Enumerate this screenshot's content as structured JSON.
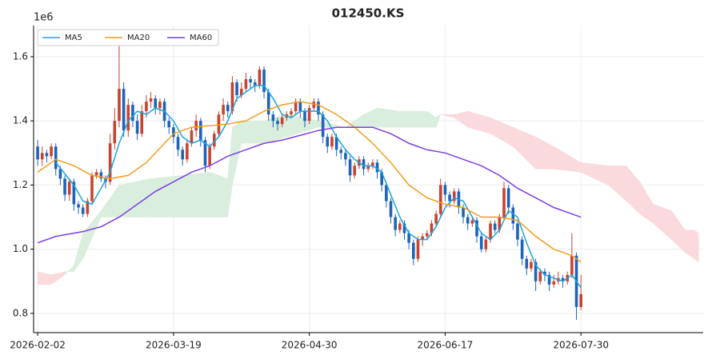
{
  "chart_data": {
    "type": "candlestick",
    "title": "012450.KS",
    "offset_label": "1e6",
    "up_color": "#c8432f",
    "down_color": "#1f63b8",
    "open": [
      1.32,
      1.28,
      1.3,
      1.29,
      1.32,
      1.25,
      1.22,
      1.17,
      1.21,
      1.14,
      1.13,
      1.11,
      1.15,
      1.23,
      1.24,
      1.22,
      1.21,
      1.33,
      1.4,
      1.5,
      1.37,
      1.45,
      1.4,
      1.36,
      1.43,
      1.46,
      1.47,
      1.44,
      1.46,
      1.4,
      1.38,
      1.35,
      1.31,
      1.28,
      1.33,
      1.37,
      1.4,
      1.34,
      1.26,
      1.32,
      1.36,
      1.42,
      1.45,
      1.43,
      1.52,
      1.48,
      1.5,
      1.53,
      1.52,
      1.51,
      1.56,
      1.49,
      1.42,
      1.4,
      1.39,
      1.41,
      1.42,
      1.43,
      1.46,
      1.43,
      1.4,
      1.44,
      1.46,
      1.42,
      1.35,
      1.32,
      1.35,
      1.31,
      1.3,
      1.28,
      1.23,
      1.26,
      1.28,
      1.25,
      1.26,
      1.27,
      1.24,
      1.2,
      1.15,
      1.1,
      1.06,
      1.08,
      1.05,
      1.02,
      0.97,
      1.03,
      1.04,
      1.05,
      1.08,
      1.11,
      1.2,
      1.17,
      1.15,
      1.18,
      1.13,
      1.1,
      1.08,
      1.09,
      1.04,
      1.0,
      1.03,
      1.08,
      1.06,
      1.1,
      1.19,
      1.13,
      1.08,
      1.03,
      0.97,
      0.94,
      0.96,
      0.9,
      0.93,
      0.92,
      0.89,
      0.9,
      0.91,
      0.9,
      0.92,
      0.98,
      0.82
    ],
    "high": [
      1.34,
      1.32,
      1.31,
      1.33,
      1.33,
      1.26,
      1.23,
      1.22,
      1.22,
      1.15,
      1.14,
      1.16,
      1.24,
      1.25,
      1.25,
      1.23,
      1.36,
      1.44,
      1.66,
      1.52,
      1.47,
      1.46,
      1.42,
      1.45,
      1.48,
      1.49,
      1.48,
      1.47,
      1.47,
      1.41,
      1.39,
      1.36,
      1.32,
      1.34,
      1.38,
      1.42,
      1.41,
      1.35,
      1.33,
      1.37,
      1.43,
      1.47,
      1.46,
      1.54,
      1.53,
      1.52,
      1.55,
      1.54,
      1.53,
      1.57,
      1.57,
      1.5,
      1.43,
      1.41,
      1.42,
      1.43,
      1.44,
      1.47,
      1.47,
      1.44,
      1.45,
      1.47,
      1.47,
      1.43,
      1.36,
      1.36,
      1.36,
      1.32,
      1.31,
      1.29,
      1.27,
      1.29,
      1.29,
      1.27,
      1.28,
      1.28,
      1.25,
      1.21,
      1.16,
      1.11,
      1.09,
      1.09,
      1.06,
      1.03,
      1.04,
      1.05,
      1.06,
      1.09,
      1.12,
      1.22,
      1.21,
      1.18,
      1.19,
      1.19,
      1.14,
      1.11,
      1.1,
      1.1,
      1.05,
      1.04,
      1.09,
      1.09,
      1.11,
      1.21,
      1.2,
      1.14,
      1.09,
      1.04,
      0.98,
      0.97,
      0.97,
      0.94,
      0.94,
      0.93,
      0.92,
      0.93,
      0.92,
      0.93,
      1.05,
      0.99,
      0.92
    ],
    "low": [
      1.26,
      1.26,
      1.27,
      1.28,
      1.23,
      1.2,
      1.15,
      1.15,
      1.12,
      1.11,
      1.1,
      1.1,
      1.14,
      1.22,
      1.21,
      1.19,
      1.2,
      1.31,
      1.38,
      1.35,
      1.35,
      1.38,
      1.34,
      1.35,
      1.41,
      1.44,
      1.42,
      1.42,
      1.38,
      1.36,
      1.33,
      1.29,
      1.26,
      1.27,
      1.32,
      1.35,
      1.32,
      1.24,
      1.25,
      1.31,
      1.35,
      1.4,
      1.41,
      1.42,
      1.46,
      1.47,
      1.49,
      1.5,
      1.49,
      1.5,
      1.47,
      1.4,
      1.38,
      1.37,
      1.38,
      1.4,
      1.41,
      1.42,
      1.41,
      1.38,
      1.39,
      1.43,
      1.4,
      1.33,
      1.3,
      1.31,
      1.29,
      1.28,
      1.26,
      1.21,
      1.22,
      1.25,
      1.23,
      1.24,
      1.25,
      1.22,
      1.18,
      1.13,
      1.08,
      1.04,
      1.05,
      1.03,
      1.0,
      0.95,
      0.96,
      1.01,
      1.03,
      1.04,
      1.07,
      1.1,
      1.15,
      1.13,
      1.14,
      1.11,
      1.08,
      1.06,
      1.07,
      1.02,
      0.99,
      0.99,
      1.02,
      1.05,
      1.05,
      1.09,
      1.11,
      1.06,
      1.01,
      0.95,
      0.92,
      0.93,
      0.87,
      0.89,
      0.9,
      0.87,
      0.88,
      0.89,
      0.88,
      0.89,
      0.91,
      0.78,
      0.81
    ],
    "close": [
      1.28,
      1.3,
      1.29,
      1.32,
      1.25,
      1.22,
      1.17,
      1.21,
      1.14,
      1.13,
      1.11,
      1.15,
      1.23,
      1.24,
      1.22,
      1.21,
      1.33,
      1.4,
      1.5,
      1.37,
      1.45,
      1.4,
      1.36,
      1.43,
      1.46,
      1.47,
      1.44,
      1.46,
      1.4,
      1.38,
      1.35,
      1.31,
      1.28,
      1.33,
      1.37,
      1.4,
      1.34,
      1.26,
      1.32,
      1.36,
      1.42,
      1.45,
      1.43,
      1.52,
      1.48,
      1.5,
      1.53,
      1.52,
      1.51,
      1.56,
      1.49,
      1.42,
      1.4,
      1.39,
      1.41,
      1.42,
      1.43,
      1.46,
      1.43,
      1.4,
      1.44,
      1.46,
      1.42,
      1.35,
      1.32,
      1.35,
      1.31,
      1.3,
      1.28,
      1.23,
      1.26,
      1.28,
      1.25,
      1.26,
      1.27,
      1.24,
      1.2,
      1.15,
      1.1,
      1.06,
      1.08,
      1.05,
      1.02,
      0.97,
      1.03,
      1.04,
      1.05,
      1.08,
      1.11,
      1.2,
      1.17,
      1.15,
      1.18,
      1.13,
      1.1,
      1.08,
      1.09,
      1.04,
      1.0,
      1.03,
      1.08,
      1.06,
      1.1,
      1.19,
      1.13,
      1.08,
      1.03,
      0.97,
      0.94,
      0.96,
      0.9,
      0.93,
      0.92,
      0.89,
      0.9,
      0.91,
      0.9,
      0.92,
      0.98,
      0.82,
      0.86
    ],
    "series": [
      {
        "name": "MA5",
        "color": "#1ba3dd",
        "x": [
          4,
          8,
          10,
          12,
          14,
          16,
          18,
          20,
          22,
          24,
          26,
          28,
          30,
          32,
          34,
          36,
          38,
          40,
          42,
          44,
          46,
          48,
          50,
          52,
          54,
          56,
          58,
          60,
          62,
          64,
          66,
          68,
          70,
          72,
          74,
          76,
          78,
          80,
          82,
          84,
          86,
          88,
          90,
          92,
          94,
          96,
          98,
          100,
          102,
          104,
          106,
          108,
          110,
          112,
          114,
          116,
          118,
          120
        ],
        "values": [
          1.27,
          1.2,
          1.15,
          1.14,
          1.19,
          1.24,
          1.33,
          1.4,
          1.43,
          1.42,
          1.44,
          1.43,
          1.4,
          1.35,
          1.33,
          1.34,
          1.32,
          1.35,
          1.4,
          1.47,
          1.49,
          1.51,
          1.51,
          1.47,
          1.42,
          1.41,
          1.43,
          1.43,
          1.43,
          1.4,
          1.35,
          1.31,
          1.28,
          1.26,
          1.26,
          1.24,
          1.17,
          1.1,
          1.05,
          1.03,
          1.03,
          1.07,
          1.13,
          1.16,
          1.15,
          1.1,
          1.05,
          1.03,
          1.06,
          1.12,
          1.1,
          1.02,
          0.95,
          0.92,
          0.91,
          0.9,
          0.92,
          0.88
        ]
      },
      {
        "name": "MA20",
        "color": "#f39c1f",
        "x": [
          0,
          4,
          8,
          12,
          16,
          20,
          24,
          28,
          30,
          34,
          38,
          42,
          46,
          50,
          54,
          58,
          62,
          66,
          70,
          74,
          78,
          82,
          86,
          90,
          94,
          98,
          102,
          106,
          110,
          114,
          118,
          120
        ],
        "values": [
          1.24,
          1.28,
          1.26,
          1.23,
          1.22,
          1.23,
          1.27,
          1.33,
          1.36,
          1.38,
          1.385,
          1.39,
          1.4,
          1.43,
          1.45,
          1.46,
          1.45,
          1.42,
          1.38,
          1.33,
          1.27,
          1.2,
          1.16,
          1.14,
          1.13,
          1.1,
          1.1,
          1.09,
          1.04,
          1.0,
          0.98,
          0.96
        ]
      },
      {
        "name": "MA60",
        "color": "#7b3fe4",
        "x": [
          0,
          4,
          10,
          14,
          18,
          22,
          26,
          30,
          34,
          38,
          42,
          46,
          50,
          54,
          58,
          62,
          66,
          70,
          74,
          78,
          82,
          86,
          90,
          94,
          98,
          102,
          106,
          110,
          114,
          118,
          120
        ],
        "values": [
          1.02,
          1.04,
          1.055,
          1.07,
          1.1,
          1.14,
          1.18,
          1.21,
          1.24,
          1.26,
          1.29,
          1.31,
          1.33,
          1.34,
          1.355,
          1.37,
          1.38,
          1.38,
          1.38,
          1.36,
          1.33,
          1.31,
          1.3,
          1.28,
          1.26,
          1.23,
          1.19,
          1.16,
          1.13,
          1.11,
          1.1
        ]
      }
    ],
    "cloud": {
      "up_color": "#d9eedd",
      "down_color": "#fadadd",
      "x": [
        0,
        3,
        6,
        8,
        10,
        14,
        18,
        25,
        32,
        38,
        42,
        43,
        45,
        50,
        55,
        62,
        68,
        72,
        75,
        80,
        86,
        88,
        89,
        92,
        95,
        100,
        105,
        110,
        114,
        120,
        126,
        130,
        133,
        136,
        140,
        143,
        145,
        146
      ],
      "span_a": [
        0.89,
        0.89,
        0.92,
        0.95,
        1.05,
        1.12,
        1.2,
        1.22,
        1.23,
        1.24,
        1.22,
        1.38,
        1.4,
        1.4,
        1.42,
        1.4,
        1.38,
        1.42,
        1.44,
        1.43,
        1.43,
        1.41,
        1.42,
        1.41,
        1.38,
        1.36,
        1.32,
        1.25,
        1.25,
        1.24,
        1.2,
        1.15,
        1.11,
        1.08,
        1.03,
        0.99,
        0.97,
        0.96
      ],
      "span_b": [
        0.93,
        0.92,
        0.93,
        0.93,
        0.97,
        1.1,
        1.1,
        1.1,
        1.1,
        1.1,
        1.1,
        1.2,
        1.33,
        1.33,
        1.35,
        1.38,
        1.38,
        1.38,
        1.38,
        1.38,
        1.38,
        1.38,
        1.42,
        1.42,
        1.43,
        1.41,
        1.38,
        1.35,
        1.32,
        1.27,
        1.26,
        1.26,
        1.21,
        1.14,
        1.12,
        1.06,
        1.06,
        1.05
      ]
    },
    "xlim": [
      -0.9,
      147
    ],
    "xticks": [
      {
        "value": 0,
        "label": "2026-02-02"
      },
      {
        "value": 30,
        "label": "2026-03-19"
      },
      {
        "value": 60,
        "label": "2026-04-30"
      },
      {
        "value": 90,
        "label": "2026-06-17"
      },
      {
        "value": 120,
        "label": "2026-07-30"
      }
    ],
    "ylim": [
      0.74,
      1.697
    ],
    "yticks": [
      0.8,
      {
        "value": 1.0,
        "label": "1.0"
      },
      1.2,
      1.4,
      1.6
    ],
    "grid": true,
    "legend": "upper left"
  }
}
